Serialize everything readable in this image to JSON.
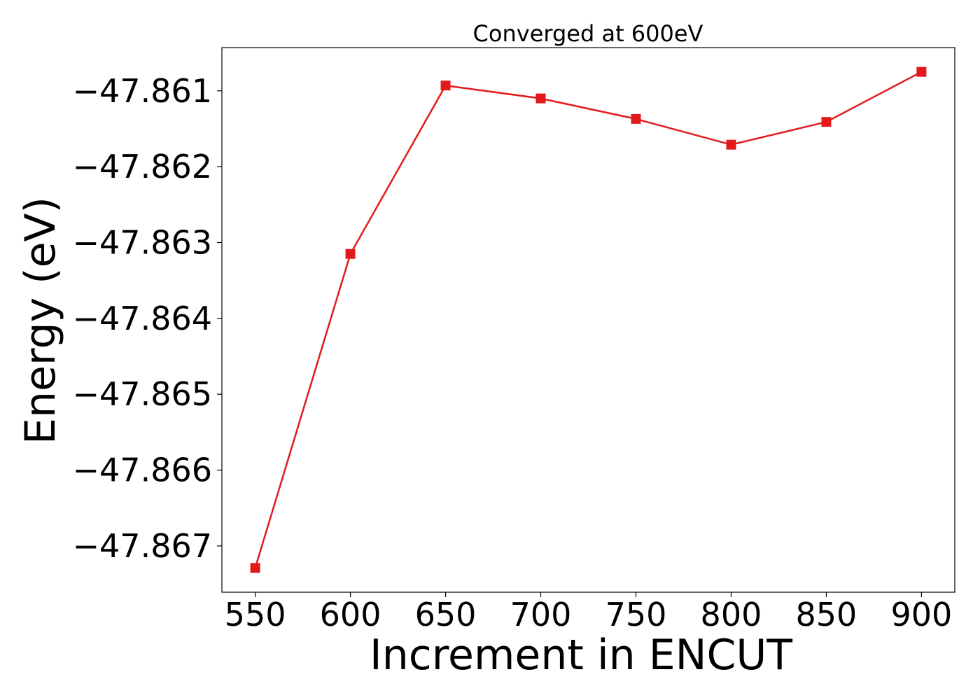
{
  "chart_data": {
    "type": "line",
    "title": "Converged at 600eV",
    "xlabel": "Increment in ENCUT",
    "ylabel": "Energy (eV)",
    "x": [
      550,
      600,
      650,
      700,
      750,
      800,
      850,
      900
    ],
    "series": [
      {
        "values": [
          -47.86729,
          -47.86315,
          -47.86093,
          -47.8611,
          -47.86137,
          -47.86171,
          -47.86141,
          -47.86075
        ],
        "color": "#e31a1c",
        "marker": "square"
      }
    ],
    "xticks": [
      550,
      600,
      650,
      700,
      750,
      800,
      850,
      900
    ],
    "xtick_labels": [
      "550",
      "600",
      "650",
      "700",
      "750",
      "800",
      "850",
      "900"
    ],
    "yticks": [
      -47.861,
      -47.862,
      -47.863,
      -47.864,
      -47.865,
      -47.866,
      -47.867
    ],
    "ytick_labels": [
      "−47.861",
      "−47.862",
      "−47.863",
      "−47.864",
      "−47.865",
      "−47.866",
      "−47.867"
    ],
    "xlim": [
      532.5,
      917.5
    ],
    "ylim": [
      -47.86761,
      -47.86043
    ],
    "grid": false
  }
}
